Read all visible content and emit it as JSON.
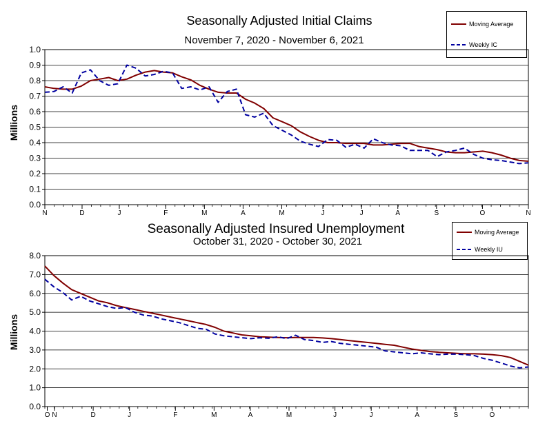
{
  "chart_data": [
    {
      "type": "line",
      "title": "Seasonally Adjusted Initial Claims",
      "subtitle": "November 7, 2020 - November 6, 2021",
      "xlabel": "",
      "ylabel": "Millions",
      "ylim": [
        0.0,
        1.0
      ],
      "yticks": [
        "0.0",
        "0.1",
        "0.2",
        "0.3",
        "0.4",
        "0.5",
        "0.6",
        "0.7",
        "0.8",
        "0.9",
        "1.0"
      ],
      "xticks": [
        "N",
        "D",
        "J",
        "F",
        "M",
        "A",
        "M",
        "J",
        "J",
        "A",
        "S",
        "O",
        "N"
      ],
      "legend": [
        "Moving Average",
        "Weekly IC"
      ],
      "series": [
        {
          "name": "Moving Average",
          "color": "#800000",
          "style": "solid",
          "values": [
            0.76,
            0.75,
            0.745,
            0.745,
            0.765,
            0.8,
            0.81,
            0.82,
            0.8,
            0.81,
            0.835,
            0.855,
            0.865,
            0.855,
            0.85,
            0.825,
            0.805,
            0.77,
            0.745,
            0.725,
            0.72,
            0.72,
            0.68,
            0.655,
            0.62,
            0.56,
            0.535,
            0.51,
            0.47,
            0.44,
            0.415,
            0.4,
            0.4,
            0.395,
            0.395,
            0.395,
            0.385,
            0.385,
            0.39,
            0.395,
            0.395,
            0.375,
            0.365,
            0.355,
            0.34,
            0.335,
            0.335,
            0.34,
            0.345,
            0.335,
            0.32,
            0.3,
            0.285,
            0.28
          ]
        },
        {
          "name": "Weekly IC",
          "color": "#0000a0",
          "style": "dashed",
          "values": [
            0.725,
            0.73,
            0.76,
            0.72,
            0.85,
            0.87,
            0.8,
            0.77,
            0.78,
            0.9,
            0.88,
            0.83,
            0.84,
            0.86,
            0.85,
            0.75,
            0.76,
            0.74,
            0.76,
            0.66,
            0.73,
            0.745,
            0.58,
            0.565,
            0.59,
            0.51,
            0.48,
            0.45,
            0.41,
            0.39,
            0.375,
            0.42,
            0.415,
            0.37,
            0.39,
            0.365,
            0.425,
            0.4,
            0.385,
            0.38,
            0.35,
            0.35,
            0.35,
            0.31,
            0.34,
            0.35,
            0.365,
            0.325,
            0.3,
            0.29,
            0.285,
            0.275,
            0.265,
            0.27
          ]
        }
      ]
    },
    {
      "type": "line",
      "title": "Seasonally Adjusted Insured Unemployment",
      "subtitle": "October 31, 2020 - October 30, 2021",
      "xlabel": "",
      "ylabel": "Millions",
      "ylim": [
        0.0,
        8.0
      ],
      "yticks": [
        "0.0",
        "1.0",
        "2.0",
        "3.0",
        "4.0",
        "5.0",
        "6.0",
        "7.0",
        "8.0"
      ],
      "xticks": [
        "O",
        "N",
        "D",
        "J",
        "F",
        "M",
        "A",
        "M",
        "J",
        "J",
        "A",
        "S",
        "O"
      ],
      "legend": [
        "Moving Average",
        "Weekly IU"
      ],
      "series": [
        {
          "name": "Moving Average",
          "color": "#800000",
          "style": "solid",
          "values": [
            7.45,
            6.95,
            6.55,
            6.2,
            6.0,
            5.8,
            5.6,
            5.5,
            5.35,
            5.25,
            5.15,
            5.05,
            4.95,
            4.85,
            4.75,
            4.65,
            4.55,
            4.45,
            4.35,
            4.2,
            4.0,
            3.9,
            3.8,
            3.75,
            3.7,
            3.68,
            3.66,
            3.65,
            3.66,
            3.66,
            3.66,
            3.64,
            3.6,
            3.55,
            3.5,
            3.45,
            3.4,
            3.35,
            3.3,
            3.25,
            3.15,
            3.05,
            2.98,
            2.92,
            2.88,
            2.85,
            2.82,
            2.8,
            2.8,
            2.78,
            2.75,
            2.7,
            2.6,
            2.4,
            2.2
          ]
        },
        {
          "name": "Weekly IU",
          "color": "#0000a0",
          "style": "dashed",
          "values": [
            6.75,
            6.35,
            6.05,
            5.65,
            5.85,
            5.6,
            5.45,
            5.3,
            5.2,
            5.25,
            5.0,
            4.85,
            4.8,
            4.65,
            4.55,
            4.45,
            4.3,
            4.15,
            4.1,
            3.85,
            3.75,
            3.7,
            3.65,
            3.6,
            3.65,
            3.62,
            3.7,
            3.6,
            3.78,
            3.55,
            3.5,
            3.4,
            3.45,
            3.35,
            3.3,
            3.25,
            3.2,
            3.15,
            2.95,
            2.9,
            2.85,
            2.8,
            2.85,
            2.8,
            2.75,
            2.78,
            2.78,
            2.75,
            2.7,
            2.55,
            2.45,
            2.3,
            2.15,
            2.05,
            2.1
          ]
        }
      ]
    }
  ]
}
